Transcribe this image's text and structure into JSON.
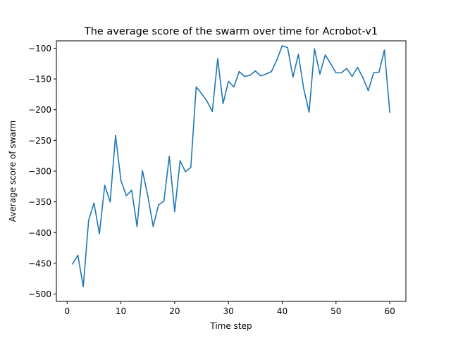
{
  "chart_data": {
    "type": "line",
    "title": "The average score of the swarm over time for Acrobot-v1",
    "xlabel": "Time step",
    "ylabel": "Average score of swarm",
    "xlim": [
      -2,
      63
    ],
    "ylim": [
      -512,
      -88
    ],
    "xticks": [
      0,
      10,
      20,
      30,
      40,
      50,
      60
    ],
    "yticks": [
      -500,
      -450,
      -400,
      -350,
      -300,
      -250,
      -200,
      -150,
      -100
    ],
    "xtick_labels": [
      "0",
      "10",
      "20",
      "30",
      "40",
      "50",
      "60"
    ],
    "ytick_labels": [
      "−500",
      "−450",
      "−400",
      "−350",
      "−300",
      "−250",
      "−200",
      "−150",
      "−100"
    ],
    "grid": false,
    "color": "#1f77b4",
    "series": [
      {
        "x": [
          1,
          2,
          3,
          4,
          5,
          6,
          7,
          8,
          9,
          10,
          11,
          12,
          13,
          14,
          15,
          16,
          17,
          18,
          19,
          20,
          21,
          22,
          23,
          24,
          25,
          26,
          27,
          28,
          29,
          30,
          31,
          32,
          33,
          34,
          35,
          36,
          37,
          38,
          39,
          40,
          41,
          42,
          43,
          44,
          45,
          46,
          47,
          48,
          49,
          50,
          51,
          52,
          53,
          54,
          55,
          56,
          57,
          58,
          59,
          60
        ],
        "values": [
          -451,
          -437,
          -488,
          -380,
          -352,
          -402,
          -323,
          -350,
          -242,
          -315,
          -340,
          -331,
          -390,
          -299,
          -340,
          -390,
          -355,
          -349,
          -276,
          -366,
          -283,
          -301,
          -294,
          -163,
          -174,
          -186,
          -203,
          -117,
          -190,
          -154,
          -163,
          -138,
          -146,
          -144,
          -137,
          -145,
          -142,
          -138,
          -119,
          -96,
          -99,
          -147,
          -110,
          -166,
          -204,
          -101,
          -142,
          -111,
          -125,
          -140,
          -140,
          -133,
          -146,
          -131,
          -148,
          -169,
          -140,
          -139,
          -103,
          -204
        ]
      }
    ]
  }
}
